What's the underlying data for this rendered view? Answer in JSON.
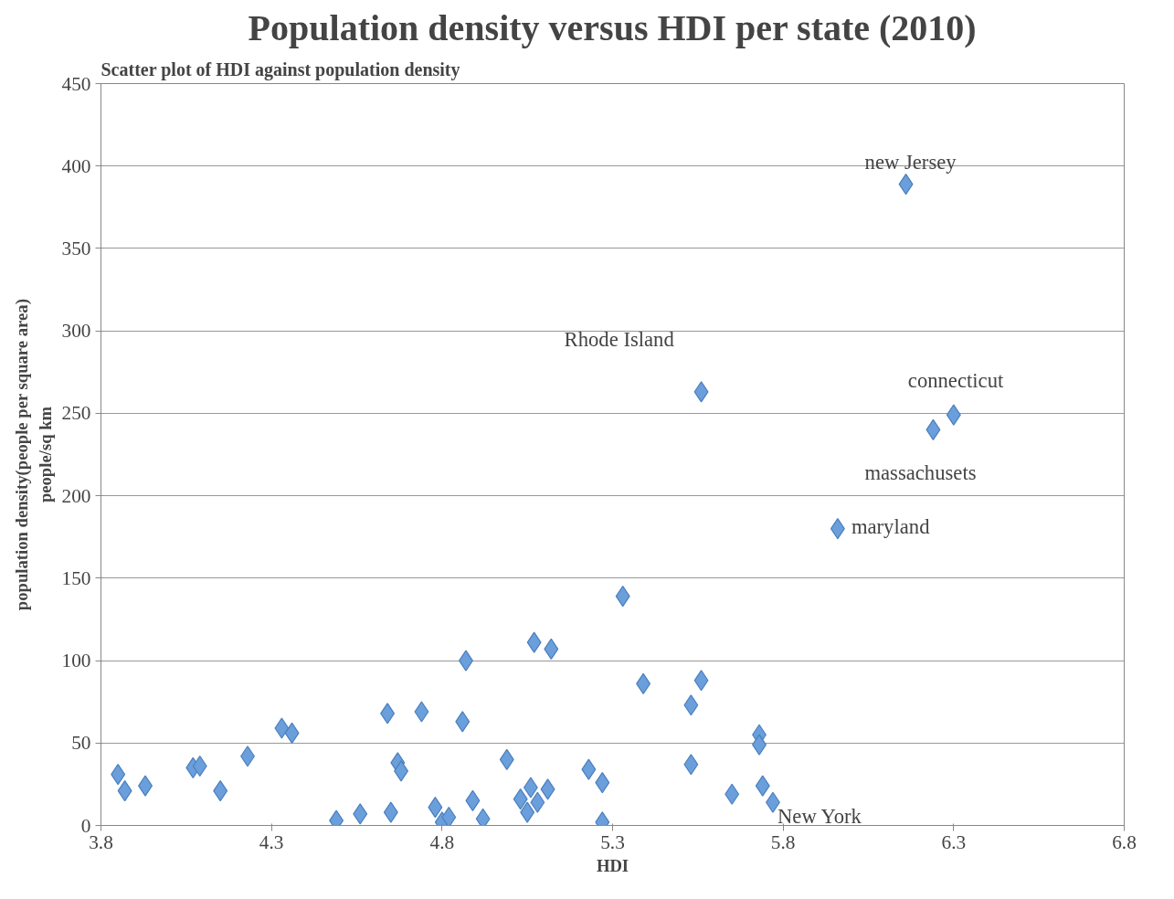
{
  "chart_data": {
    "type": "scatter",
    "title": "Population density versus HDI per state (2010)",
    "subtitle": "Scatter plot of HDI against population density",
    "xlabel": "HDI",
    "ylabel": "population density(people per square area)\npeople/sq km",
    "x": [
      3.85,
      3.87,
      3.93,
      4.07,
      4.09,
      4.15,
      4.23,
      4.33,
      4.36,
      4.49,
      4.56,
      4.64,
      4.65,
      4.67,
      4.68,
      4.74,
      4.78,
      4.8,
      4.82,
      4.86,
      4.87,
      4.89,
      4.92,
      4.99,
      5.03,
      5.05,
      5.06,
      5.07,
      5.08,
      5.11,
      5.12,
      5.33,
      5.39,
      5.56,
      5.53,
      5.73,
      5.73,
      5.53,
      5.23,
      5.27,
      5.65,
      5.74,
      5.77,
      5.27,
      5.56,
      6.3,
      6.24,
      5.96,
      6.16
    ],
    "values": [
      31,
      21,
      24,
      35,
      36,
      21,
      42,
      59,
      56,
      3,
      7,
      68,
      8,
      38,
      33,
      69,
      11,
      2,
      5,
      63,
      100,
      15,
      4,
      40,
      16,
      8,
      23,
      111,
      14,
      22,
      107,
      139,
      86,
      88,
      73,
      55,
      49,
      37,
      34,
      26,
      19,
      24,
      14,
      2,
      263,
      249,
      240,
      180,
      389
    ],
    "color": "#6b9fdb",
    "marker": "diamond",
    "xlim": [
      3.8,
      6.8
    ],
    "xticks": [
      3.8,
      4.3,
      4.8,
      5.3,
      5.8,
      6.3,
      6.8
    ],
    "ylim": [
      0,
      450
    ],
    "yticks": [
      0,
      50,
      100,
      150,
      200,
      250,
      300,
      350,
      400,
      450
    ],
    "grid": "y",
    "annotations": [
      {
        "text": "new Jersey",
        "x": 6.16,
        "y": 389
      },
      {
        "text": "Rhode Island",
        "x": 5.56,
        "y": 263
      },
      {
        "text": "connecticut",
        "x": 6.3,
        "y": 249
      },
      {
        "text": "massachusets",
        "x": 6.24,
        "y": 240
      },
      {
        "text": "maryland",
        "x": 5.96,
        "y": 180
      },
      {
        "text": "New York",
        "x": 5.77,
        "y": 14
      }
    ]
  }
}
